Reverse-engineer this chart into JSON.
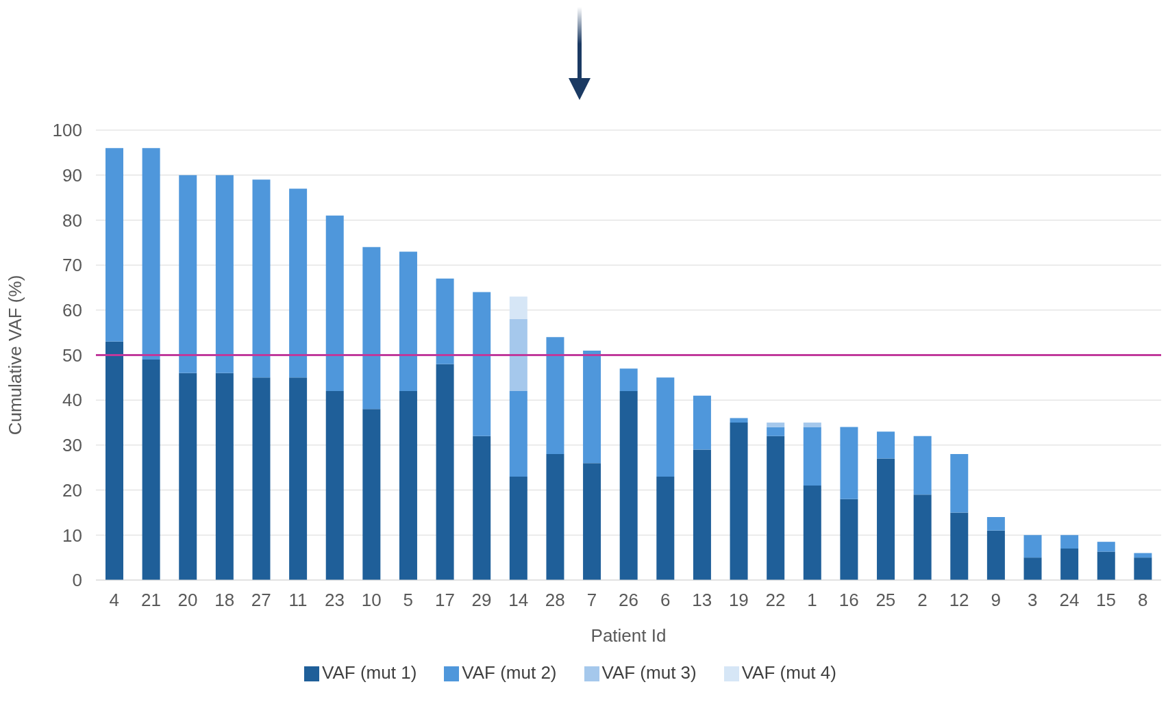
{
  "chart_data": {
    "type": "bar",
    "stacked": true,
    "xlabel": "Patient Id",
    "ylabel": "Cumulative VAF (%)",
    "categories": [
      "4",
      "21",
      "20",
      "18",
      "27",
      "11",
      "23",
      "10",
      "5",
      "17",
      "29",
      "14",
      "28",
      "7",
      "26",
      "6",
      "13",
      "19",
      "22",
      "1",
      "16",
      "25",
      "2",
      "12",
      "9",
      "3",
      "24",
      "15",
      "8"
    ],
    "series": [
      {
        "name": "VAF (mut 1)",
        "color": "#1f5f99",
        "values": [
          53,
          49,
          46,
          46,
          45,
          45,
          42,
          38,
          42,
          48,
          32,
          23,
          28,
          26,
          42,
          23,
          29,
          35,
          32,
          21,
          18,
          27,
          19,
          15,
          11,
          5,
          7,
          6.3,
          5
        ]
      },
      {
        "name": "VAF (mut 2)",
        "color": "#4f97db",
        "values": [
          43,
          47,
          44,
          44,
          44,
          42,
          39,
          36,
          31,
          19,
          32,
          19,
          26,
          25,
          5,
          22,
          12,
          1,
          2,
          13,
          16,
          6,
          13,
          13,
          3,
          5,
          3,
          2.2,
          1
        ]
      },
      {
        "name": "VAF (mut 3)",
        "color": "#a5c8ec",
        "values": [
          null,
          null,
          null,
          null,
          null,
          null,
          null,
          null,
          null,
          null,
          null,
          16,
          null,
          null,
          null,
          null,
          null,
          null,
          1,
          1,
          null,
          null,
          null,
          null,
          null,
          null,
          null,
          null,
          null
        ]
      },
      {
        "name": "VAF (mut 4)",
        "color": "#d6e6f6",
        "values": [
          null,
          null,
          null,
          null,
          null,
          null,
          null,
          null,
          null,
          null,
          null,
          5,
          null,
          null,
          null,
          null,
          null,
          null,
          null,
          null,
          null,
          null,
          null,
          null,
          null,
          null,
          null,
          null,
          null
        ]
      }
    ],
    "ylim": [
      0,
      100
    ],
    "yticks": [
      0,
      10,
      20,
      30,
      40,
      50,
      60,
      70,
      80,
      90,
      100
    ],
    "grid": "y",
    "legend": "bottom",
    "ref_lines": [
      {
        "axis": "y",
        "value": 50,
        "color": "#c0399b"
      }
    ]
  }
}
